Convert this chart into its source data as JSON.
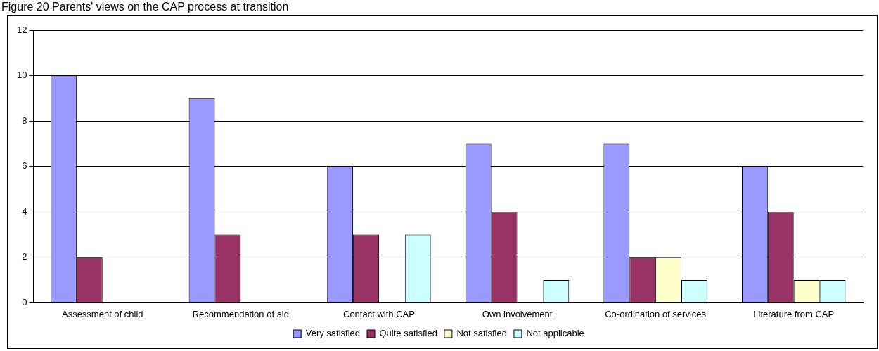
{
  "chart_data": {
    "type": "bar",
    "title": "Figure 20 Parents' views on the CAP process at transition",
    "categories": [
      "Assessment of child",
      "Recommendation of aid",
      "Contact with CAP",
      "Own involvement",
      "Co-ordination of services",
      "Literature from CAP"
    ],
    "series": [
      {
        "name": "Very satisfied",
        "color": "#9999ff",
        "values": [
          10,
          9,
          6,
          7,
          7,
          6
        ]
      },
      {
        "name": "Quite satisfied",
        "color": "#993366",
        "values": [
          2,
          3,
          3,
          4,
          2,
          4
        ]
      },
      {
        "name": "Not satisfied",
        "color": "#ffffcc",
        "values": [
          0,
          0,
          0,
          0,
          2,
          1
        ]
      },
      {
        "name": "Not applicable",
        "color": "#ccffff",
        "values": [
          0,
          0,
          3,
          1,
          1,
          1
        ]
      }
    ],
    "ylim": [
      0,
      12
    ],
    "yticks": [
      0,
      2,
      4,
      6,
      8,
      10,
      12
    ],
    "grid": "y",
    "legend": "bottom"
  }
}
